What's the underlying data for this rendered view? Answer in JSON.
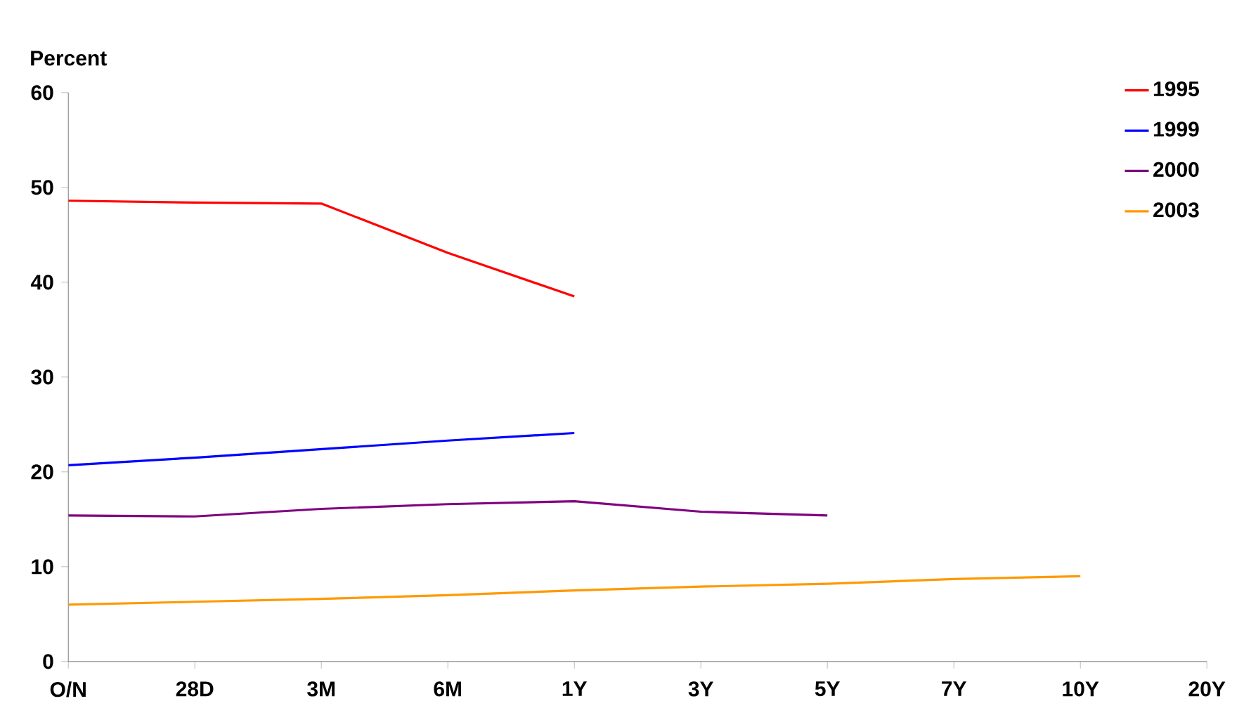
{
  "chart_data": {
    "type": "line",
    "ylabel": "Percent",
    "categories": [
      "O/N",
      "28D",
      "3M",
      "6M",
      "1Y",
      "3Y",
      "5Y",
      "7Y",
      "10Y",
      "20Y"
    ],
    "series": [
      {
        "name": "1995",
        "color": "#ff0000",
        "values": [
          48.6,
          48.4,
          48.3,
          43.1,
          38.5,
          null,
          null,
          null,
          null,
          null
        ]
      },
      {
        "name": "1999",
        "color": "#0000ff",
        "values": [
          20.7,
          21.5,
          22.4,
          23.3,
          24.1,
          null,
          null,
          null,
          null,
          null
        ]
      },
      {
        "name": "2000",
        "color": "#800080",
        "values": [
          15.4,
          15.3,
          16.1,
          16.6,
          16.9,
          15.8,
          15.4,
          null,
          null,
          null
        ]
      },
      {
        "name": "2003",
        "color": "#ff9900",
        "values": [
          6.0,
          6.3,
          6.6,
          7.0,
          7.5,
          7.9,
          8.2,
          8.7,
          9.0,
          null
        ]
      }
    ],
    "ylim": [
      0,
      60
    ],
    "yticks": [
      0,
      10,
      20,
      30,
      40,
      50,
      60
    ],
    "grid": false,
    "legend": "top right",
    "marker": "none",
    "line_style": "solid"
  }
}
